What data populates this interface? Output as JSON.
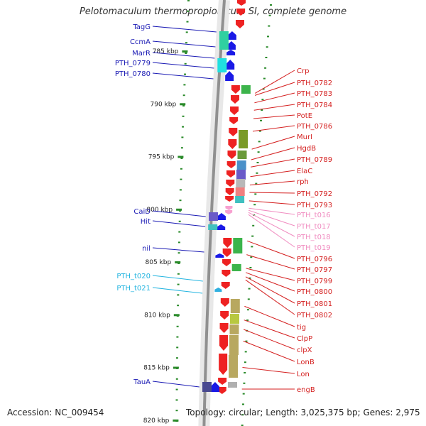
{
  "title": "Pelotomaculum thermopropionicum SI, complete genome",
  "accession": "Accession: NC_009454",
  "topology": "Topology: circular; Length: 3,025,375 bp; Genes: 2,975",
  "colors": {
    "left_label": "#1a1ab4",
    "left_trna_label": "#22b4e0",
    "right_label": "#d41e1e",
    "right_trna_label": "#f08cc0",
    "gene_red": "#ee2222",
    "gene_blue": "#1a1ae6",
    "gene_pink": "#f7a0d0",
    "gene_cyan": "#30b0e0",
    "backbone": "#909090",
    "tick_green": "#2a8a2a"
  },
  "scale": {
    "ticks": [
      {
        "label": "785 kbp",
        "pos": 785
      },
      {
        "label": "790 kbp",
        "pos": 790
      },
      {
        "label": "795 kbp",
        "pos": 795
      },
      {
        "label": "800 kbp",
        "pos": 800
      },
      {
        "label": "805 kbp",
        "pos": 805
      },
      {
        "label": "810 kbp",
        "pos": 810
      },
      {
        "label": "815 kbp",
        "pos": 815
      },
      {
        "label": "820 kbp",
        "pos": 820
      }
    ]
  },
  "left_labels": [
    {
      "text": "TagG",
      "kind": "gene",
      "target": 781.0
    },
    {
      "text": "CcmA",
      "kind": "gene",
      "target": 782.5
    },
    {
      "text": "MarR",
      "kind": "gene",
      "target": 783.6
    },
    {
      "text": "PTH_0779",
      "kind": "gene",
      "target": 785.5
    },
    {
      "text": "PTH_0780",
      "kind": "gene",
      "target": 786.6
    },
    {
      "text": "CaiD",
      "kind": "gene",
      "target": 800.3
    },
    {
      "text": "Hit",
      "kind": "gene",
      "target": 801.3
    },
    {
      "text": "nil",
      "kind": "gene",
      "target": 804.2
    },
    {
      "text": "PTH_t020",
      "kind": "trna",
      "target": 807.0
    },
    {
      "text": "PTH_t021",
      "kind": "trna",
      "target": 807.1
    },
    {
      "text": "TauA",
      "kind": "gene",
      "target": 817.3
    }
  ],
  "right_labels": [
    {
      "text": "Crp",
      "kind": "gene",
      "target": 789.0
    },
    {
      "text": "PTH_0782",
      "kind": "gene",
      "target": 789.2
    },
    {
      "text": "PTH_0783",
      "kind": "gene",
      "target": 789.9
    },
    {
      "text": "PTH_0784",
      "kind": "gene",
      "target": 790.6
    },
    {
      "text": "PotE",
      "kind": "gene",
      "target": 791.4
    },
    {
      "text": "PTH_0786",
      "kind": "gene",
      "target": 792.6
    },
    {
      "text": "MurI",
      "kind": "gene",
      "target": 794.3
    },
    {
      "text": "HgdB",
      "kind": "gene",
      "target": 795.3
    },
    {
      "text": "PTH_0789",
      "kind": "gene",
      "target": 796.0
    },
    {
      "text": "ElaC",
      "kind": "gene",
      "target": 796.9
    },
    {
      "text": "rph",
      "kind": "gene",
      "target": 797.7
    },
    {
      "text": "PTH_0792",
      "kind": "gene",
      "target": 798.4
    },
    {
      "text": "PTH_0793",
      "kind": "gene",
      "target": 799.2
    },
    {
      "text": "PTH_t016",
      "kind": "trna",
      "target": 799.9
    },
    {
      "text": "PTH_t017",
      "kind": "trna",
      "target": 800.1
    },
    {
      "text": "PTH_t018",
      "kind": "trna",
      "target": 800.3
    },
    {
      "text": "PTH_t019",
      "kind": "trna",
      "target": 800.5
    },
    {
      "text": "PTH_0796",
      "kind": "gene",
      "target": 803.0
    },
    {
      "text": "PTH_0797",
      "kind": "gene",
      "target": 804.3
    },
    {
      "text": "PTH_0799",
      "kind": "gene",
      "target": 805.6
    },
    {
      "text": "PTH_0800",
      "kind": "gene",
      "target": 806.0
    },
    {
      "text": "PTH_0801",
      "kind": "gene",
      "target": 806.4
    },
    {
      "text": "PTH_0802",
      "kind": "gene",
      "target": 806.7
    },
    {
      "text": "tig",
      "kind": "gene",
      "target": 809.2
    },
    {
      "text": "ClpP",
      "kind": "gene",
      "target": 810.5
    },
    {
      "text": "clpX",
      "kind": "gene",
      "target": 811.4
    },
    {
      "text": "LonB",
      "kind": "gene",
      "target": 812.5
    },
    {
      "text": "Lon",
      "kind": "gene",
      "target": 815.0
    },
    {
      "text": "engB",
      "kind": "gene",
      "target": 817.5
    }
  ]
}
